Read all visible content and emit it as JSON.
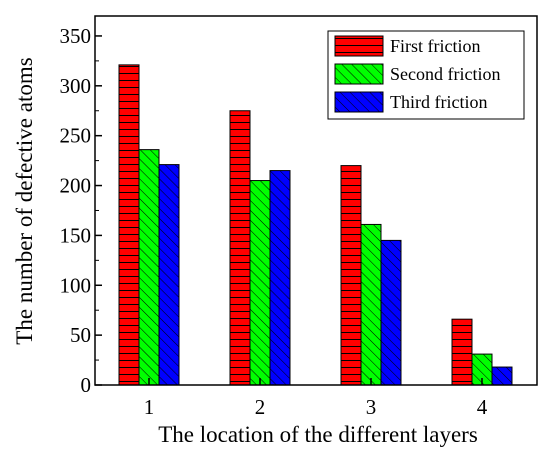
{
  "chart_data": {
    "type": "bar",
    "title": "",
    "xlabel": "The location of the different layers",
    "ylabel": "The number of defective atoms",
    "categories": [
      "1",
      "2",
      "3",
      "4"
    ],
    "ylim": [
      0,
      370
    ],
    "yticks": [
      0,
      50,
      100,
      150,
      200,
      250,
      300,
      350
    ],
    "legend_position": "top-right",
    "grid": false,
    "series": [
      {
        "name": "First friction",
        "values": [
          321,
          275,
          220,
          66
        ],
        "color": "#ff0000",
        "pattern": "horizontal-hatch"
      },
      {
        "name": "Second friction",
        "values": [
          236,
          205,
          161,
          31
        ],
        "color": "#00ff00",
        "pattern": "diagonal-hatch"
      },
      {
        "name": "Third friction",
        "values": [
          221,
          215,
          145,
          18
        ],
        "color": "#0000ff",
        "pattern": "diagonal-hatch"
      }
    ]
  }
}
